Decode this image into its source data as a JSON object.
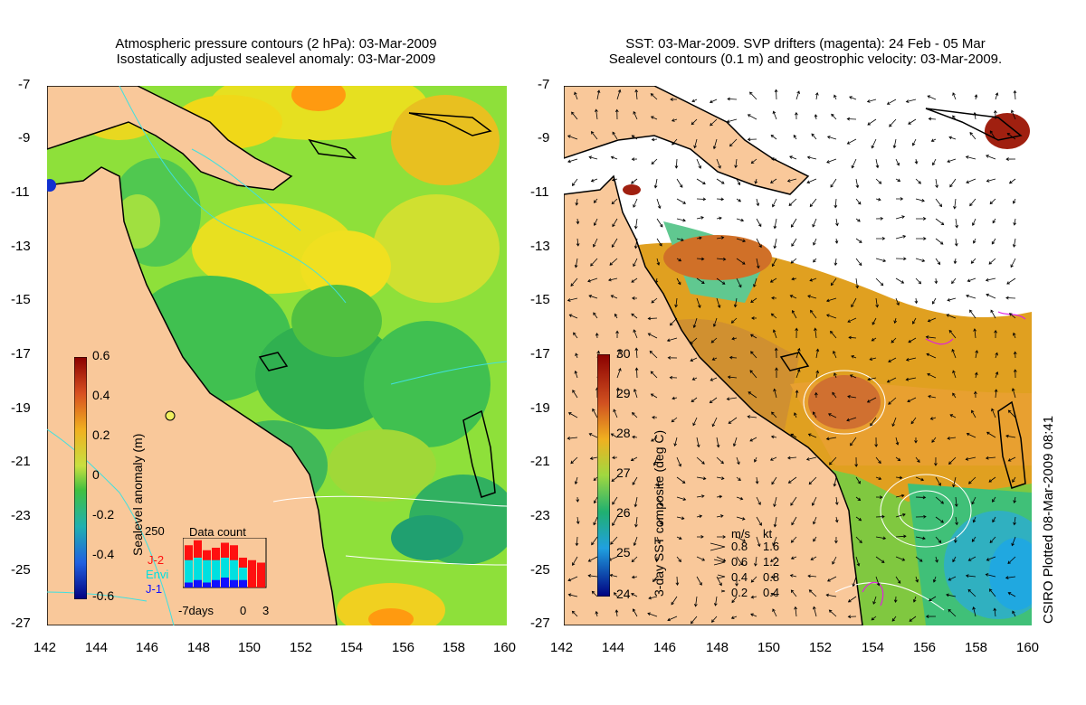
{
  "left": {
    "title_line1": "Atmospheric pressure contours (2 hPa): 03-Mar-2009",
    "title_line2": "Isostatically adjusted sealevel anomaly: 03-Mar-2009",
    "colorbar_label": "Sealevel anomaly (m)",
    "colorbar_ticks": [
      "0.6",
      "0.4",
      "0.2",
      "0",
      "-0.2",
      "-0.4",
      "-0.6"
    ],
    "datacount": {
      "title": "Data count",
      "ymax_label": "250",
      "sources": [
        {
          "name": "J-2",
          "color": "#ff1010"
        },
        {
          "name": "Envi",
          "color": "#00e0e0"
        },
        {
          "name": "J-1",
          "color": "#1010ff"
        }
      ],
      "x_labels": [
        "-7days",
        "0",
        "3"
      ],
      "bars": [
        {
          "j2": 0.85,
          "envi": 0.55,
          "j1": 0.1
        },
        {
          "j2": 0.95,
          "envi": 0.6,
          "j1": 0.15
        },
        {
          "j2": 0.75,
          "envi": 0.55,
          "j1": 0.1
        },
        {
          "j2": 0.8,
          "envi": 0.55,
          "j1": 0.15
        },
        {
          "j2": 0.9,
          "envi": 0.6,
          "j1": 0.2
        },
        {
          "j2": 0.85,
          "envi": 0.55,
          "j1": 0.15
        },
        {
          "j2": 0.6,
          "envi": 0.4,
          "j1": 0.15
        },
        {
          "j2": 0.55,
          "envi": 0.0,
          "j1": 0.0
        },
        {
          "j2": 0.5,
          "envi": 0.0,
          "j1": 0.0
        }
      ]
    }
  },
  "right": {
    "title_line1": "SST: 03-Mar-2009. SVP drifters (magenta): 24 Feb - 05 Mar",
    "title_line2": "Sealevel contours (0.1 m) and geostrophic velocity: 03-Mar-2009.",
    "colorbar_label": "3-day SST composite (deg C)",
    "colorbar_ticks": [
      "30",
      "29",
      "28",
      "27",
      "26",
      "25",
      "24"
    ],
    "velocity_legend": {
      "header_ms": "m/s",
      "header_kt": "kt",
      "rows": [
        {
          "ms": "0.8",
          "kt": "1.6"
        },
        {
          "ms": "0.6",
          "kt": "1.2"
        },
        {
          "ms": "0.4",
          "kt": "0.8"
        },
        {
          "ms": "0.2",
          "kt": "0.4"
        }
      ]
    }
  },
  "axes": {
    "lat_ticks": [
      "-7",
      "-9",
      "-11",
      "-13",
      "-15",
      "-17",
      "-19",
      "-21",
      "-23",
      "-25",
      "-27"
    ],
    "lon_ticks": [
      "142",
      "144",
      "146",
      "148",
      "150",
      "152",
      "154",
      "156",
      "158",
      "160"
    ]
  },
  "stamp": "CSIRO Plotted 08-Mar-2009 08:41",
  "colors": {
    "land": "#f9c89a",
    "ocean_green": "#8ee03a",
    "cloud": "#ffffff",
    "coast": "#000000",
    "pressure_contour": "#40e0e0"
  }
}
